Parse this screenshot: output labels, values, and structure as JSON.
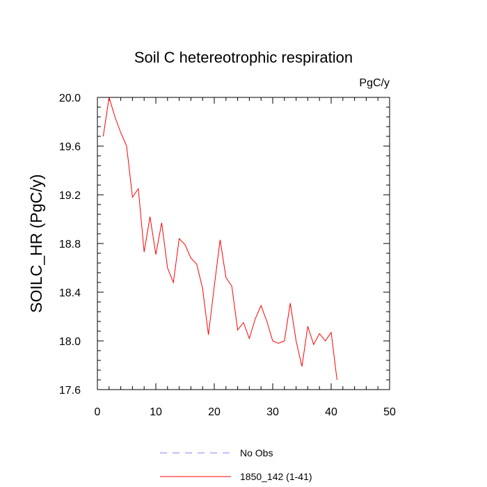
{
  "chart_data": {
    "type": "line",
    "title": "Soil C hetereotrophic respiration",
    "units_label": "PgC/y",
    "xlabel": "",
    "ylabel": "SOILC_HR  (PgC/y)",
    "xlim": [
      0,
      50
    ],
    "ylim": [
      17.6,
      20.0
    ],
    "x_ticks": [
      0,
      10,
      20,
      30,
      40,
      50
    ],
    "x_tick_labels": [
      "0",
      "10",
      "20",
      "30",
      "40",
      "50"
    ],
    "y_ticks": [
      17.6,
      18.0,
      18.4,
      18.8,
      19.2,
      19.6,
      20.0
    ],
    "y_tick_labels": [
      "17.6",
      "18.0",
      "18.4",
      "18.8",
      "19.2",
      "19.6",
      "20.0"
    ],
    "grid": false,
    "legend_position": "bottom-center",
    "series": [
      {
        "name": "1850_142 (1-41)",
        "color": "#ff0000",
        "style": "solid",
        "x": [
          1,
          2,
          3,
          4,
          5,
          6,
          7,
          8,
          9,
          10,
          11,
          12,
          13,
          14,
          15,
          16,
          17,
          18,
          19,
          20,
          21,
          22,
          23,
          24,
          25,
          26,
          27,
          28,
          29,
          30,
          31,
          32,
          33,
          34,
          35,
          36,
          37,
          38,
          39,
          40,
          41
        ],
        "values": [
          19.68,
          20.0,
          19.84,
          19.71,
          19.6,
          19.18,
          19.25,
          18.73,
          19.02,
          18.71,
          18.97,
          18.6,
          18.48,
          18.84,
          18.79,
          18.68,
          18.63,
          18.43,
          18.05,
          18.45,
          18.83,
          18.52,
          18.45,
          18.09,
          18.15,
          18.02,
          18.18,
          18.29,
          18.16,
          18.0,
          17.98,
          18.0,
          18.31,
          18.0,
          17.79,
          18.12,
          17.97,
          18.06,
          18.0,
          18.07,
          17.68
        ]
      },
      {
        "name": "No Obs",
        "color": "#8080ff",
        "style": "dashed",
        "x": [],
        "values": []
      }
    ]
  }
}
